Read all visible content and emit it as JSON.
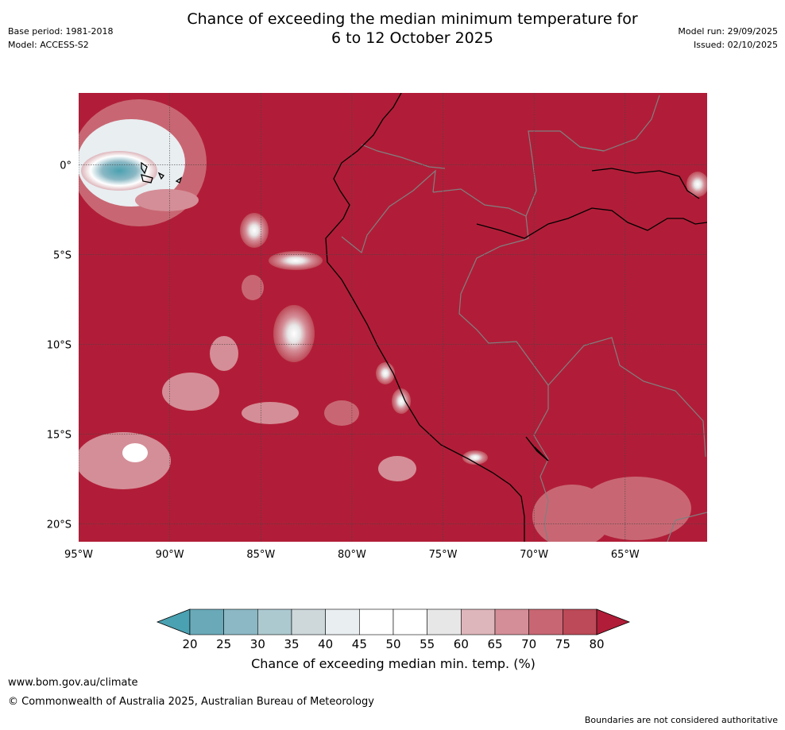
{
  "header": {
    "title_line1": "Chance of exceeding the median minimum temperature for",
    "title_line2": "6 to 12 October 2025",
    "base_period": "Base period: 1981-2018",
    "model": "Model: ACCESS-S2",
    "model_run": "Model run: 29/09/2025",
    "issued": "Issued: 02/10/2025"
  },
  "map": {
    "lon_range": [
      -95,
      -60.5
    ],
    "lat_range": [
      -21,
      4
    ],
    "x_ticks": [
      {
        "value": -95,
        "label": "95°W"
      },
      {
        "value": -90,
        "label": "90°W"
      },
      {
        "value": -85,
        "label": "85°W"
      },
      {
        "value": -80,
        "label": "80°W"
      },
      {
        "value": -75,
        "label": "75°W"
      },
      {
        "value": -70,
        "label": "70°W"
      },
      {
        "value": -65,
        "label": "65°W"
      }
    ],
    "y_ticks": [
      {
        "value": 0,
        "label": "0°"
      },
      {
        "value": -5,
        "label": "5°S"
      },
      {
        "value": -10,
        "label": "10°S"
      },
      {
        "value": -15,
        "label": "15°S"
      },
      {
        "value": -20,
        "label": "20°S"
      }
    ],
    "background_color": "#b11d38",
    "grid_color": "#444444",
    "coast_color": "#000000",
    "border_color": "#808080"
  },
  "colorbar": {
    "title": "Chance of exceeding median min. temp. (%)",
    "tick_labels": [
      "20",
      "25",
      "30",
      "35",
      "40",
      "45",
      "50",
      "55",
      "60",
      "65",
      "70",
      "75",
      "80"
    ],
    "under_color": "#4aa1b1",
    "over_color": "#b11d38",
    "colors": [
      "#6aa9b8",
      "#8bb8c4",
      "#adc9d0",
      "#ced8db",
      "#e9eef1",
      "#ffffff",
      "#ffffff",
      "#e7e7e7",
      "#ddb6bb",
      "#d48e97",
      "#c86773",
      "#bd4a58"
    ]
  },
  "footer": {
    "url": "www.bom.gov.au/climate",
    "copyright": "© Commonwealth of Australia 2025, Australian Bureau of Meteorology",
    "disclaimer": "Boundaries are not considered authoritative"
  }
}
